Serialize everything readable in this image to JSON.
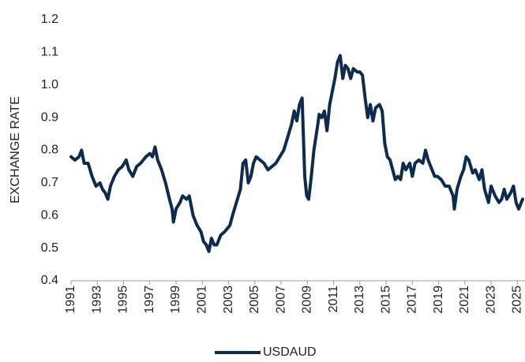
{
  "chart_data": {
    "type": "line",
    "y_label": "EXCHANGE RATE",
    "x": [
      1991.0,
      1991.3,
      1991.6,
      1991.8,
      1992.0,
      1992.3,
      1992.6,
      1992.9,
      1993.2,
      1993.4,
      1993.6,
      1993.8,
      1994.0,
      1994.3,
      1994.6,
      1994.9,
      1995.2,
      1995.4,
      1995.7,
      1996.0,
      1996.3,
      1996.7,
      1997.0,
      1997.2,
      1997.4,
      1997.6,
      1997.9,
      1998.2,
      1998.5,
      1998.7,
      1998.8,
      1999.0,
      1999.3,
      1999.5,
      1999.8,
      2000.0,
      2000.3,
      2000.6,
      2000.9,
      2001.1,
      2001.3,
      2001.5,
      2001.7,
      2001.9,
      2002.1,
      2002.4,
      2002.7,
      2002.9,
      2003.1,
      2003.3,
      2003.6,
      2003.9,
      2004.1,
      2004.3,
      2004.5,
      2004.7,
      2004.9,
      2005.1,
      2005.4,
      2005.7,
      2006.0,
      2006.3,
      2006.6,
      2006.9,
      2007.2,
      2007.5,
      2007.8,
      2008.0,
      2008.2,
      2008.4,
      2008.6,
      2008.8,
      2008.95,
      2009.1,
      2009.3,
      2009.5,
      2009.8,
      2009.9,
      2010.1,
      2010.3,
      2010.5,
      2010.7,
      2010.9,
      2011.1,
      2011.3,
      2011.5,
      2011.7,
      2011.9,
      2012.1,
      2012.3,
      2012.5,
      2012.8,
      2013.0,
      2013.2,
      2013.4,
      2013.6,
      2013.8,
      2014.0,
      2014.2,
      2014.5,
      2014.7,
      2014.9,
      2015.1,
      2015.3,
      2015.5,
      2015.7,
      2015.9,
      2016.1,
      2016.3,
      2016.5,
      2016.8,
      2017.0,
      2017.2,
      2017.5,
      2017.8,
      2018.0,
      2018.2,
      2018.4,
      2018.7,
      2018.9,
      2019.2,
      2019.5,
      2019.8,
      2020.1,
      2020.2,
      2020.4,
      2020.7,
      2020.9,
      2021.1,
      2021.3,
      2021.6,
      2021.8,
      2022.1,
      2022.3,
      2022.5,
      2022.8,
      2023.0,
      2023.3,
      2023.6,
      2023.8,
      2024.0,
      2024.2,
      2024.5,
      2024.7,
      2024.9,
      2025.1,
      2025.3,
      2025.4
    ],
    "series": [
      {
        "name": "USDAUD",
        "color": "#0d2b4e",
        "values": [
          0.78,
          0.77,
          0.78,
          0.8,
          0.76,
          0.76,
          0.72,
          0.69,
          0.7,
          0.68,
          0.67,
          0.65,
          0.69,
          0.72,
          0.74,
          0.75,
          0.77,
          0.74,
          0.72,
          0.75,
          0.76,
          0.78,
          0.79,
          0.78,
          0.81,
          0.77,
          0.74,
          0.7,
          0.65,
          0.62,
          0.58,
          0.62,
          0.64,
          0.66,
          0.65,
          0.66,
          0.6,
          0.57,
          0.55,
          0.52,
          0.51,
          0.49,
          0.53,
          0.51,
          0.51,
          0.54,
          0.55,
          0.56,
          0.57,
          0.6,
          0.64,
          0.68,
          0.76,
          0.77,
          0.7,
          0.72,
          0.76,
          0.78,
          0.77,
          0.76,
          0.74,
          0.75,
          0.76,
          0.78,
          0.8,
          0.84,
          0.88,
          0.92,
          0.89,
          0.94,
          0.96,
          0.72,
          0.66,
          0.65,
          0.72,
          0.8,
          0.88,
          0.91,
          0.9,
          0.92,
          0.86,
          0.94,
          0.98,
          1.02,
          1.07,
          1.09,
          1.02,
          1.06,
          1.05,
          1.02,
          1.05,
          1.04,
          1.04,
          1.03,
          0.96,
          0.9,
          0.94,
          0.89,
          0.93,
          0.94,
          0.92,
          0.82,
          0.78,
          0.77,
          0.74,
          0.71,
          0.72,
          0.71,
          0.76,
          0.74,
          0.76,
          0.72,
          0.76,
          0.77,
          0.76,
          0.8,
          0.77,
          0.75,
          0.72,
          0.72,
          0.71,
          0.69,
          0.69,
          0.66,
          0.62,
          0.68,
          0.72,
          0.74,
          0.78,
          0.77,
          0.73,
          0.74,
          0.71,
          0.74,
          0.68,
          0.64,
          0.69,
          0.66,
          0.64,
          0.65,
          0.68,
          0.65,
          0.67,
          0.69,
          0.64,
          0.62,
          0.64,
          0.65
        ]
      }
    ],
    "xlim": [
      1991,
      2025.4
    ],
    "xticks": [
      1991,
      1993,
      1995,
      1997,
      1999,
      2001,
      2003,
      2005,
      2007,
      2009,
      2011,
      2013,
      2015,
      2017,
      2019,
      2021,
      2023,
      2025
    ],
    "ylim": [
      0.4,
      1.2
    ],
    "yticks": [
      0.4,
      0.5,
      0.6,
      0.7,
      0.8,
      0.9,
      {
        "value": 1,
        "label": "1.0"
      },
      1.1,
      1.2
    ],
    "grid": false
  }
}
